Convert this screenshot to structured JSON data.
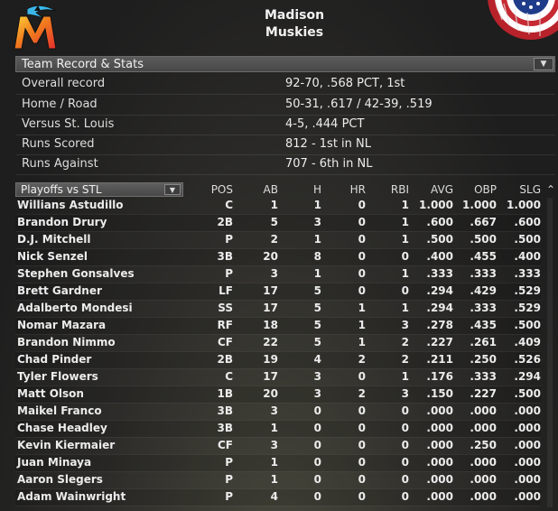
{
  "header": {
    "city": "Madison",
    "nickname": "Muskies",
    "logo_icon": "marlins-m-logo-icon",
    "bunting_icon": "patriotic-bunting-icon"
  },
  "record": {
    "title": "Team Record & Stats",
    "rows": [
      {
        "label": "Overall record",
        "value": "92-70, .568 PCT, 1st"
      },
      {
        "label": "Home / Road",
        "value": "50-31, .617 / 42-39, .519"
      },
      {
        "label": "Versus St. Louis",
        "value": "4-5, .444 PCT"
      },
      {
        "label": "Runs Scored",
        "value": "812 - 1st  in NL"
      },
      {
        "label": "Runs Against",
        "value": "707 - 6th  in NL"
      }
    ]
  },
  "stats": {
    "split": "Playoffs vs STL",
    "columns": [
      "POS",
      "AB",
      "H",
      "HR",
      "RBI",
      "AVG",
      "OBP",
      "SLG"
    ],
    "players": [
      {
        "name": "Willians Astudillo",
        "pos": "C",
        "ab": "1",
        "h": "1",
        "hr": "0",
        "rbi": "1",
        "avg": "1.000",
        "obp": "1.000",
        "slg": "1.000"
      },
      {
        "name": "Brandon Drury",
        "pos": "2B",
        "ab": "5",
        "h": "3",
        "hr": "0",
        "rbi": "1",
        "avg": ".600",
        "obp": ".667",
        "slg": ".600"
      },
      {
        "name": "D.J. Mitchell",
        "pos": "P",
        "ab": "2",
        "h": "1",
        "hr": "0",
        "rbi": "1",
        "avg": ".500",
        "obp": ".500",
        "slg": ".500"
      },
      {
        "name": "Nick Senzel",
        "pos": "3B",
        "ab": "20",
        "h": "8",
        "hr": "0",
        "rbi": "0",
        "avg": ".400",
        "obp": ".455",
        "slg": ".400"
      },
      {
        "name": "Stephen Gonsalves",
        "pos": "P",
        "ab": "3",
        "h": "1",
        "hr": "0",
        "rbi": "1",
        "avg": ".333",
        "obp": ".333",
        "slg": ".333"
      },
      {
        "name": "Brett Gardner",
        "pos": "LF",
        "ab": "17",
        "h": "5",
        "hr": "0",
        "rbi": "0",
        "avg": ".294",
        "obp": ".429",
        "slg": ".529"
      },
      {
        "name": "Adalberto Mondesi",
        "pos": "SS",
        "ab": "17",
        "h": "5",
        "hr": "1",
        "rbi": "1",
        "avg": ".294",
        "obp": ".333",
        "slg": ".529"
      },
      {
        "name": "Nomar Mazara",
        "pos": "RF",
        "ab": "18",
        "h": "5",
        "hr": "1",
        "rbi": "3",
        "avg": ".278",
        "obp": ".435",
        "slg": ".500"
      },
      {
        "name": "Brandon Nimmo",
        "pos": "CF",
        "ab": "22",
        "h": "5",
        "hr": "1",
        "rbi": "2",
        "avg": ".227",
        "obp": ".261",
        "slg": ".409"
      },
      {
        "name": "Chad Pinder",
        "pos": "2B",
        "ab": "19",
        "h": "4",
        "hr": "2",
        "rbi": "2",
        "avg": ".211",
        "obp": ".250",
        "slg": ".526"
      },
      {
        "name": "Tyler Flowers",
        "pos": "C",
        "ab": "17",
        "h": "3",
        "hr": "0",
        "rbi": "1",
        "avg": ".176",
        "obp": ".333",
        "slg": ".294"
      },
      {
        "name": "Matt Olson",
        "pos": "1B",
        "ab": "20",
        "h": "3",
        "hr": "2",
        "rbi": "3",
        "avg": ".150",
        "obp": ".227",
        "slg": ".500"
      },
      {
        "name": "Maikel Franco",
        "pos": "3B",
        "ab": "3",
        "h": "0",
        "hr": "0",
        "rbi": "0",
        "avg": ".000",
        "obp": ".000",
        "slg": ".000"
      },
      {
        "name": "Chase Headley",
        "pos": "3B",
        "ab": "1",
        "h": "0",
        "hr": "0",
        "rbi": "0",
        "avg": ".000",
        "obp": ".000",
        "slg": ".000"
      },
      {
        "name": "Kevin Kiermaier",
        "pos": "CF",
        "ab": "3",
        "h": "0",
        "hr": "0",
        "rbi": "0",
        "avg": ".000",
        "obp": ".250",
        "slg": ".000"
      },
      {
        "name": "Juan Minaya",
        "pos": "P",
        "ab": "1",
        "h": "0",
        "hr": "0",
        "rbi": "0",
        "avg": ".000",
        "obp": ".000",
        "slg": ".000"
      },
      {
        "name": "Aaron Slegers",
        "pos": "P",
        "ab": "1",
        "h": "0",
        "hr": "0",
        "rbi": "0",
        "avg": ".000",
        "obp": ".000",
        "slg": ".000"
      },
      {
        "name": "Adam Wainwright",
        "pos": "P",
        "ab": "4",
        "h": "0",
        "hr": "0",
        "rbi": "0",
        "avg": ".000",
        "obp": ".000",
        "slg": ".000"
      }
    ]
  }
}
